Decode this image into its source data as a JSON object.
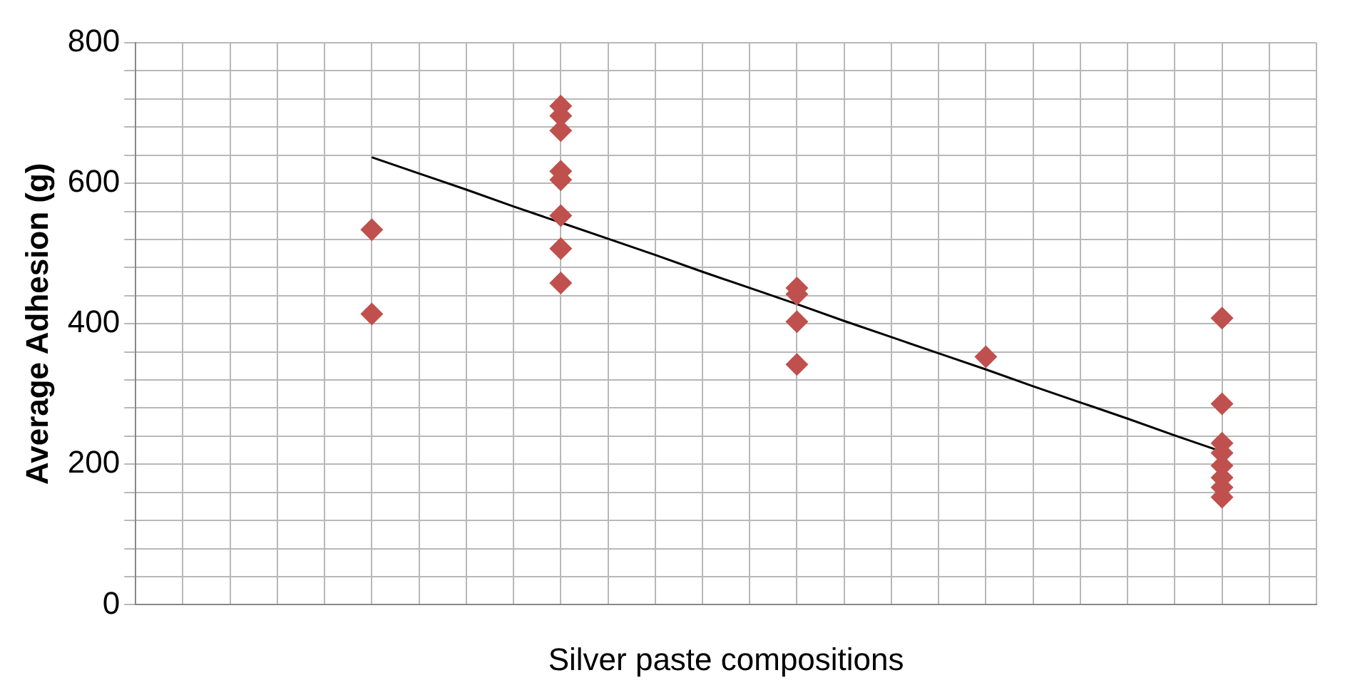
{
  "chart_data": {
    "type": "scatter",
    "xlabel": "Silver paste compositions",
    "ylabel": "Average Adhesion (g)",
    "categories": [
      null,
      null,
      null,
      null,
      null,
      null,
      null,
      null,
      null,
      null,
      null,
      null,
      null,
      null,
      null,
      null,
      null,
      null,
      null,
      null,
      null,
      null,
      null,
      null,
      null,
      null
    ],
    "ylim": [
      0,
      800
    ],
    "yticks": [
      0,
      {
        "value": 40,
        "label": null
      },
      {
        "value": 80,
        "label": null
      },
      {
        "value": 120,
        "label": null
      },
      {
        "value": 160,
        "label": null
      },
      200,
      {
        "value": 240,
        "label": null
      },
      {
        "value": 280,
        "label": null
      },
      {
        "value": 320,
        "label": null
      },
      {
        "value": 360,
        "label": null
      },
      400,
      {
        "value": 440,
        "label": null
      },
      {
        "value": 480,
        "label": null
      },
      {
        "value": 520,
        "label": null
      },
      {
        "value": 560,
        "label": null
      },
      600,
      {
        "value": 640,
        "label": null
      },
      {
        "value": 680,
        "label": null
      },
      {
        "value": 720,
        "label": null
      },
      {
        "value": 760,
        "label": null
      },
      800
    ],
    "grid": true,
    "legend": false,
    "marker": "diamond",
    "series": [
      {
        "color": "#c0504d",
        "values": [
          null,
          null,
          null,
          null,
          null,
          534,
          null,
          null,
          null,
          710,
          null,
          null,
          null,
          null,
          451,
          null,
          null,
          null,
          353,
          null,
          null,
          null,
          null,
          408,
          null,
          null
        ]
      },
      {
        "color": "#c0504d",
        "values": [
          null,
          null,
          null,
          null,
          null,
          414,
          null,
          null,
          null,
          696,
          null,
          null,
          null,
          null,
          442,
          null,
          null,
          null,
          null,
          null,
          null,
          null,
          null,
          286,
          null,
          null
        ]
      },
      {
        "color": "#c0504d",
        "values": [
          null,
          null,
          null,
          null,
          null,
          null,
          null,
          null,
          null,
          675,
          null,
          null,
          null,
          null,
          403,
          null,
          null,
          null,
          null,
          null,
          null,
          null,
          null,
          230,
          null,
          null
        ]
      },
      {
        "color": "#c0504d",
        "values": [
          null,
          null,
          null,
          null,
          null,
          null,
          null,
          null,
          null,
          617,
          null,
          null,
          null,
          null,
          342,
          null,
          null,
          null,
          null,
          null,
          null,
          null,
          null,
          216,
          null,
          null
        ]
      },
      {
        "color": "#c0504d",
        "values": [
          null,
          null,
          null,
          null,
          null,
          null,
          null,
          null,
          null,
          605,
          null,
          null,
          null,
          null,
          null,
          null,
          null,
          null,
          null,
          null,
          null,
          null,
          null,
          198,
          null,
          null
        ]
      },
      {
        "color": "#c0504d",
        "values": [
          null,
          null,
          null,
          null,
          null,
          null,
          null,
          null,
          null,
          554,
          null,
          null,
          null,
          null,
          null,
          null,
          null,
          null,
          null,
          null,
          null,
          null,
          null,
          181,
          null,
          null
        ]
      },
      {
        "color": "#c0504d",
        "values": [
          null,
          null,
          null,
          null,
          null,
          null,
          null,
          null,
          null,
          507,
          null,
          null,
          null,
          null,
          null,
          null,
          null,
          null,
          null,
          null,
          null,
          null,
          null,
          167,
          null,
          null
        ]
      },
      {
        "color": "#c0504d",
        "values": [
          null,
          null,
          null,
          null,
          null,
          null,
          null,
          null,
          null,
          458,
          null,
          null,
          null,
          null,
          null,
          null,
          null,
          null,
          null,
          null,
          null,
          null,
          null,
          153,
          null,
          null
        ]
      },
      {
        "type": "line",
        "color": "#000000",
        "marker": "none",
        "line_style": "solid",
        "values": [
          null,
          null,
          null,
          null,
          null,
          637,
          614,
          591,
          567,
          544,
          521,
          498,
          474,
          451,
          428,
          404,
          381,
          358,
          335,
          311,
          288,
          265,
          241,
          218,
          null,
          null
        ]
      }
    ]
  }
}
